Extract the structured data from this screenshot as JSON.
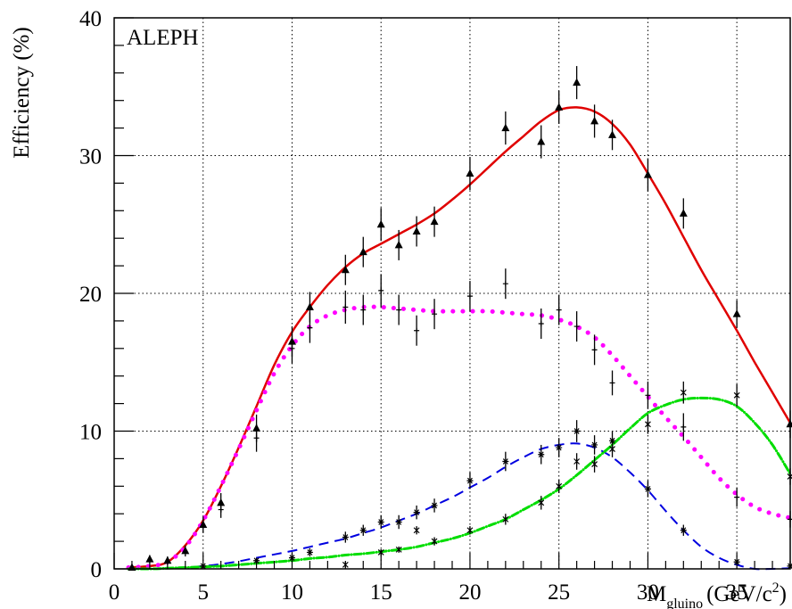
{
  "chart_data": {
    "type": "scatter",
    "title": "",
    "annotation": "ALEPH",
    "ylabel": "Efficiency (%)",
    "xlabel": {
      "main": "M",
      "subscript": "gluino",
      "unit": "(GeV/c",
      "superscript": "2",
      "close": ")"
    },
    "xlim": [
      0,
      38
    ],
    "ylim": [
      0,
      40
    ],
    "x_ticks": [
      0,
      5,
      10,
      15,
      20,
      25,
      30,
      35
    ],
    "y_ticks": [
      0,
      10,
      20,
      30,
      40
    ],
    "grid": true,
    "legend": "none",
    "series": [
      {
        "kind": "line",
        "style": "solid",
        "color": "#e00000",
        "x": [
          0.8,
          2,
          3,
          4,
          5,
          6,
          7,
          8,
          9,
          10,
          11,
          12,
          13,
          14,
          15,
          16,
          17,
          18,
          19,
          20,
          21,
          22,
          23,
          24,
          25,
          26,
          27,
          28,
          29,
          30,
          31,
          32,
          33,
          34,
          35,
          36,
          37,
          38
        ],
        "y": [
          0.1,
          0.2,
          0.5,
          1.7,
          3.5,
          6,
          8.8,
          11.8,
          14.8,
          17.2,
          19,
          20.6,
          21.9,
          22.9,
          23.6,
          24.3,
          25,
          25.8,
          26.8,
          27.9,
          29.1,
          30.3,
          31.4,
          32.5,
          33.3,
          33.5,
          33.2,
          32.3,
          30.8,
          28.7,
          26.5,
          24.1,
          21.7,
          19.5,
          17.3,
          15,
          12.8,
          10.6
        ]
      },
      {
        "kind": "dotted",
        "style": "dots",
        "color": "#ff00ff",
        "x": [
          0.8,
          2,
          3,
          4,
          5,
          6,
          7,
          8,
          9,
          10,
          11,
          12,
          13,
          14,
          15,
          16,
          17,
          18,
          19,
          20,
          21,
          22,
          23,
          24,
          25,
          26,
          27,
          28,
          29,
          30,
          31,
          32,
          33,
          34,
          35,
          36,
          37,
          38
        ],
        "y": [
          0.1,
          0.2,
          0.5,
          1.6,
          3.5,
          6,
          8.7,
          11.5,
          14.2,
          16.2,
          17.6,
          18.4,
          18.8,
          19,
          19,
          18.9,
          18.8,
          18.7,
          18.7,
          18.7,
          18.7,
          18.6,
          18.5,
          18.4,
          18.1,
          17.6,
          16.8,
          15.5,
          14,
          12.5,
          11,
          9.6,
          8.1,
          6.6,
          5.4,
          4.5,
          4,
          3.7
        ]
      },
      {
        "kind": "dashed",
        "style": "dashed",
        "color": "#0000e0",
        "x": [
          0.8,
          2,
          3,
          4,
          5,
          6,
          7,
          8,
          9,
          10,
          11,
          12,
          13,
          14,
          15,
          16,
          17,
          18,
          19,
          20,
          21,
          22,
          23,
          24,
          25,
          26,
          27,
          28,
          29,
          30,
          31,
          32,
          33,
          34,
          35,
          36,
          37,
          38
        ],
        "y": [
          0,
          0,
          0.05,
          0.1,
          0.2,
          0.35,
          0.55,
          0.8,
          1.05,
          1.3,
          1.6,
          1.9,
          2.2,
          2.6,
          3,
          3.5,
          4,
          4.6,
          5.2,
          5.9,
          6.6,
          7.4,
          8.1,
          8.7,
          9,
          9.1,
          8.8,
          8.1,
          7,
          5.7,
          4.2,
          2.8,
          1.6,
          0.8,
          0.3,
          0,
          0,
          0.05
        ]
      },
      {
        "kind": "dash-dot",
        "style": "dashdot",
        "color": "#00dd00",
        "x": [
          0.8,
          2,
          3,
          4,
          5,
          6,
          7,
          8,
          9,
          10,
          11,
          12,
          13,
          14,
          15,
          16,
          17,
          18,
          19,
          20,
          21,
          22,
          23,
          24,
          25,
          26,
          27,
          28,
          29,
          30,
          31,
          32,
          33,
          34,
          35,
          36,
          37,
          38
        ],
        "y": [
          0,
          0,
          0.05,
          0.1,
          0.15,
          0.2,
          0.3,
          0.4,
          0.5,
          0.6,
          0.75,
          0.85,
          1,
          1.1,
          1.25,
          1.4,
          1.6,
          1.9,
          2.2,
          2.6,
          3.1,
          3.6,
          4.3,
          5,
          5.8,
          6.8,
          7.9,
          9,
          10.2,
          11.3,
          11.9,
          12.3,
          12.4,
          12.3,
          11.8,
          10.6,
          9,
          6.9
        ]
      },
      {
        "kind": "points",
        "marker": "triangle",
        "x": [
          1,
          2,
          3,
          4,
          5,
          6,
          8,
          10,
          11,
          13,
          14,
          15,
          16,
          17,
          18,
          20,
          22,
          24,
          25,
          26,
          27,
          28,
          30,
          32,
          35,
          38
        ],
        "y": [
          0.1,
          0.7,
          0.6,
          1.3,
          3.2,
          4.8,
          10.2,
          16.5,
          19,
          21.7,
          23,
          25,
          23.5,
          24.5,
          25.2,
          28.7,
          32,
          31,
          33.5,
          35.3,
          32.5,
          31.5,
          28.6,
          25.8,
          18.5,
          10.5
        ],
        "err": [
          0.2,
          0.3,
          0.3,
          0.4,
          0.6,
          0.7,
          1,
          1.1,
          1.1,
          1.1,
          1.1,
          1.2,
          1.1,
          1.1,
          1.1,
          1.2,
          1.2,
          1.2,
          1.2,
          1.2,
          1.2,
          1.1,
          1.2,
          1.1,
          1,
          1
        ]
      },
      {
        "kind": "points",
        "marker": "cross",
        "x": [
          6,
          8,
          10,
          11,
          13,
          14,
          15,
          16,
          17,
          18,
          20,
          22,
          24,
          25,
          26,
          27,
          28,
          30,
          32,
          35,
          38
        ],
        "y": [
          4.3,
          9.5,
          16,
          17.5,
          19,
          18.8,
          20.2,
          18.8,
          17.3,
          18.5,
          19.8,
          20.7,
          17.8,
          18.8,
          17.6,
          15.9,
          13.5,
          12.6,
          10.3,
          5.2,
          3.6
        ],
        "err": [
          0.6,
          1,
          1.1,
          1.1,
          1.2,
          1.1,
          1.2,
          1.1,
          1.1,
          1.1,
          1.1,
          1.1,
          1.1,
          1.1,
          1.1,
          1.1,
          0.9,
          1,
          1,
          0.7,
          0.6
        ]
      },
      {
        "kind": "points",
        "marker": "star",
        "x": [
          5,
          8,
          10,
          11,
          13,
          14,
          15,
          16,
          17,
          18,
          20,
          22,
          24,
          25,
          26,
          27,
          28,
          30,
          32,
          35,
          38
        ],
        "y": [
          0.2,
          0.6,
          0.8,
          1.2,
          2.3,
          2.8,
          3.4,
          3.4,
          4.1,
          4.6,
          6.4,
          7.8,
          8.3,
          8.8,
          10,
          9,
          9.3,
          5.8,
          2.8,
          0.5,
          0.2
        ],
        "err": [
          0.1,
          0.2,
          0.3,
          0.3,
          0.4,
          0.4,
          0.5,
          0.5,
          0.5,
          0.5,
          0.6,
          0.7,
          0.7,
          0.7,
          0.8,
          0.7,
          0.7,
          0.6,
          0.4,
          0.2,
          0.1
        ]
      },
      {
        "kind": "points",
        "marker": "asterisk",
        "x": [
          13,
          15,
          16,
          17,
          18,
          20,
          22,
          24,
          25,
          26,
          27,
          28,
          30,
          32,
          35,
          38
        ],
        "y": [
          0.3,
          1.2,
          1.4,
          2.8,
          2,
          2.8,
          3.6,
          4.8,
          6,
          7.8,
          7.6,
          8.7,
          10.5,
          12.8,
          12.6,
          6.7
        ],
        "err": [
          0.1,
          0.2,
          0.2,
          0.3,
          0.3,
          0.3,
          0.4,
          0.5,
          0.5,
          0.6,
          0.6,
          0.6,
          0.7,
          0.8,
          0.8,
          0.6
        ]
      }
    ]
  }
}
